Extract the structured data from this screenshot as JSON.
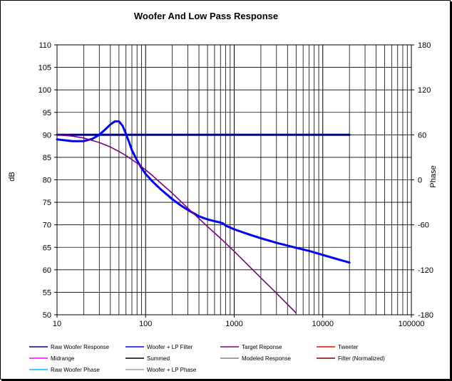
{
  "chart_data": {
    "type": "line",
    "title": "Woofer  And Low Pass Response",
    "ylabel": "dB",
    "y2label": "Phase",
    "xlabel": "",
    "xscale": "log",
    "xlim": [
      10,
      100000
    ],
    "ylim": [
      50,
      110
    ],
    "y2lim": [
      -180,
      180
    ],
    "x_ticks": [
      10,
      100,
      1000,
      10000,
      100000
    ],
    "x_tick_labels": [
      "10",
      "100",
      "1000",
      "10000",
      "100000"
    ],
    "y_ticks": [
      50,
      55,
      60,
      65,
      70,
      75,
      80,
      85,
      90,
      95,
      100,
      105,
      110
    ],
    "y_tick_labels": [
      "50",
      "55",
      "60",
      "65",
      "70",
      "75",
      "80",
      "85",
      "90",
      "95",
      "100",
      "105",
      "110"
    ],
    "y2_ticks": [
      -180,
      -120,
      -60,
      0,
      60,
      120,
      180
    ],
    "y2_tick_labels": [
      "-180",
      "-120",
      "-60",
      "0",
      "60",
      "120",
      "180"
    ],
    "grid": true,
    "legend_position": "bottom",
    "series": [
      {
        "name": "Raw Woofer Response",
        "color": "#000080",
        "x": [
          10,
          20000
        ],
        "y": [
          90,
          90
        ]
      },
      {
        "name": "Woofer + LP Filter",
        "color": "#0000ff",
        "x": [
          10,
          15,
          20,
          25,
          30,
          35,
          40,
          45,
          50,
          55,
          60,
          65,
          70,
          80,
          90,
          100,
          120,
          150,
          200,
          250,
          300,
          400,
          500,
          600,
          700,
          750,
          800,
          900,
          1000,
          1500,
          2000,
          3000,
          5000,
          7000,
          10000,
          15000,
          20000
        ],
        "y": [
          89,
          88.6,
          88.6,
          89.1,
          90,
          91.2,
          92.3,
          93,
          93,
          92,
          90.2,
          88.4,
          86.6,
          84.3,
          82.6,
          81.3,
          79.6,
          77.8,
          75.7,
          74.3,
          73.3,
          71.9,
          71.2,
          70.8,
          70.5,
          70.3,
          69.8,
          69.4,
          69,
          67.8,
          67,
          66,
          64.9,
          64.2,
          63.3,
          62.3,
          61.6
        ]
      },
      {
        "name": "Target Reponse",
        "color": "#800080",
        "x": [
          10,
          15,
          20,
          30,
          40,
          50,
          60,
          70,
          80,
          100,
          120,
          150,
          200,
          300,
          500,
          700,
          1000,
          2000,
          3000,
          5000
        ],
        "y": [
          90,
          89.7,
          89.3,
          88.3,
          87.3,
          86.3,
          85.4,
          84.5,
          83.7,
          82.2,
          80.9,
          79.2,
          77,
          73.7,
          69.6,
          67,
          64.1,
          58.2,
          54.8,
          50.4
        ]
      },
      {
        "name": "Tweeter",
        "color": "#ff0000",
        "x": [],
        "y": []
      },
      {
        "name": "Midrange",
        "color": "#ff00ff",
        "x": [],
        "y": []
      },
      {
        "name": "Summed",
        "color": "#000000",
        "x": [],
        "y": []
      },
      {
        "name": "Modeled Response",
        "color": "#808080",
        "x": [],
        "y": []
      },
      {
        "name": "Filter (Normalized)",
        "color": "#800000",
        "x": [],
        "y": []
      },
      {
        "name": "Raw Woofer Phase",
        "color": "#00c0ff",
        "x": [],
        "y": []
      },
      {
        "name": "Woofer + LP  Phase",
        "color": "#a0a0a0",
        "x": [],
        "y": []
      }
    ]
  }
}
